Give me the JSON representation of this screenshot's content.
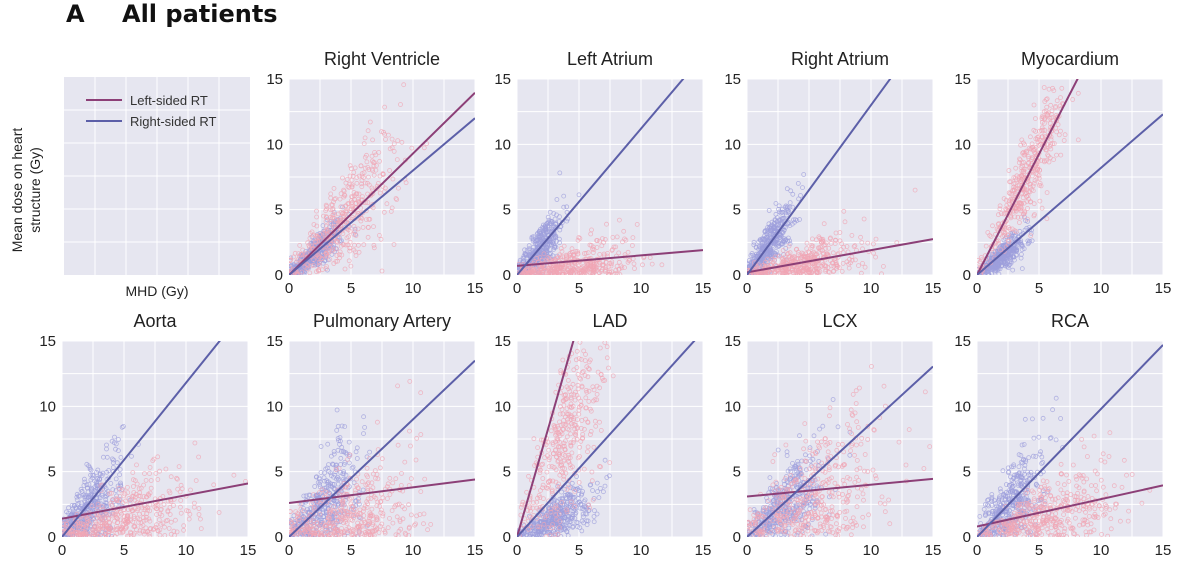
{
  "figure": {
    "letter": "A",
    "heading": "All patients",
    "ylabel_line1": "Mean dose on heart",
    "ylabel_line2": "structure (Gy)",
    "xlabel": "MHD (Gy)"
  },
  "colors": {
    "panel_bg": "#e6e6f0",
    "grid": "#ffffff",
    "left": "#8c3f77",
    "right": "#5c5fa8",
    "left_points": "#f0a6b4",
    "right_points": "#9d9fdc"
  },
  "legend": {
    "left_label": "Left-sided RT",
    "right_label": "Right-sided RT"
  },
  "chart_data": [
    {
      "type": "scatter",
      "title": "Right Ventricle",
      "xlim": [
        0,
        15
      ],
      "ylim": [
        0,
        15
      ],
      "xticks": [
        "0",
        "5",
        "10",
        "15"
      ],
      "yticks": [
        "0",
        "5",
        "10",
        "15"
      ],
      "series": [
        {
          "name": "Left-sided RT",
          "fit": {
            "intercept": 0.0,
            "slope": 0.93
          },
          "cloud": {
            "xmean": 4.5,
            "xsd": 2.2,
            "yslope": 0.95,
            "ysd": 1.5
          }
        },
        {
          "name": "Right-sided RT",
          "fit": {
            "intercept": 0.0,
            "slope": 0.8
          },
          "cloud": {
            "xmean": 2.0,
            "xsd": 1.2,
            "yslope": 0.8,
            "ysd": 0.8
          }
        }
      ]
    },
    {
      "type": "scatter",
      "title": "Left Atrium",
      "xlim": [
        0,
        15
      ],
      "ylim": [
        0,
        15
      ],
      "xticks": [
        "0",
        "5",
        "10",
        "15"
      ],
      "yticks": [
        "0",
        "5",
        "10",
        "15"
      ],
      "series": [
        {
          "name": "Left-sided RT",
          "fit": {
            "intercept": 0.7,
            "slope": 0.08
          },
          "cloud": {
            "xmean": 4.5,
            "xsd": 2.5,
            "yslope": 0.08,
            "ysd": 0.8
          }
        },
        {
          "name": "Right-sided RT",
          "fit": {
            "intercept": 0.0,
            "slope": 1.12
          },
          "cloud": {
            "xmean": 1.8,
            "xsd": 1.0,
            "yslope": 1.1,
            "ysd": 1.2
          }
        }
      ]
    },
    {
      "type": "scatter",
      "title": "Right Atrium",
      "xlim": [
        0,
        15
      ],
      "ylim": [
        0,
        15
      ],
      "xticks": [
        "0",
        "5",
        "10",
        "15"
      ],
      "yticks": [
        "0",
        "5",
        "10",
        "15"
      ],
      "series": [
        {
          "name": "Left-sided RT",
          "fit": {
            "intercept": 0.2,
            "slope": 0.17
          },
          "cloud": {
            "xmean": 4.5,
            "xsd": 2.5,
            "yslope": 0.18,
            "ysd": 0.7
          }
        },
        {
          "name": "Right-sided RT",
          "fit": {
            "intercept": 0.0,
            "slope": 1.3
          },
          "cloud": {
            "xmean": 1.7,
            "xsd": 1.0,
            "yslope": 1.3,
            "ysd": 1.3
          }
        }
      ]
    },
    {
      "type": "scatter",
      "title": "Myocardium",
      "xlim": [
        0,
        15
      ],
      "ylim": [
        0,
        15
      ],
      "xticks": [
        "0",
        "5",
        "10",
        "15"
      ],
      "yticks": [
        "0",
        "5",
        "10",
        "15"
      ],
      "series": [
        {
          "name": "Left-sided RT",
          "fit": {
            "intercept": 0.0,
            "slope": 1.85
          },
          "cloud": {
            "xmean": 4.0,
            "xsd": 1.6,
            "yslope": 1.85,
            "ysd": 1.3
          }
        },
        {
          "name": "Right-sided RT",
          "fit": {
            "intercept": 0.0,
            "slope": 0.82
          },
          "cloud": {
            "xmean": 2.0,
            "xsd": 1.0,
            "yslope": 0.7,
            "ysd": 0.6
          }
        }
      ]
    },
    {
      "type": "scatter",
      "title": "Aorta",
      "xlim": [
        0,
        15
      ],
      "ylim": [
        0,
        15
      ],
      "xticks": [
        "0",
        "5",
        "10",
        "15"
      ],
      "yticks": [
        "0",
        "5",
        "10",
        "15"
      ],
      "series": [
        {
          "name": "Left-sided RT",
          "fit": {
            "intercept": 1.4,
            "slope": 0.18
          },
          "cloud": {
            "xmean": 5.0,
            "xsd": 3.0,
            "yslope": 0.2,
            "ysd": 1.3
          }
        },
        {
          "name": "Right-sided RT",
          "fit": {
            "intercept": 0.0,
            "slope": 1.18
          },
          "cloud": {
            "xmean": 2.2,
            "xsd": 1.3,
            "yslope": 1.0,
            "ysd": 1.8
          }
        }
      ]
    },
    {
      "type": "scatter",
      "title": "Pulmonary Artery",
      "xlim": [
        0,
        15
      ],
      "ylim": [
        0,
        15
      ],
      "xticks": [
        "0",
        "5",
        "10",
        "15"
      ],
      "yticks": [
        "0",
        "5",
        "10",
        "15"
      ],
      "series": [
        {
          "name": "Left-sided RT",
          "fit": {
            "intercept": 2.6,
            "slope": 0.12
          },
          "cloud": {
            "xmean": 5.0,
            "xsd": 2.8,
            "yslope": 0.15,
            "ysd": 2.0
          }
        },
        {
          "name": "Right-sided RT",
          "fit": {
            "intercept": 0.0,
            "slope": 0.9
          },
          "cloud": {
            "xmean": 2.8,
            "xsd": 1.5,
            "yslope": 0.9,
            "ysd": 1.8
          }
        }
      ]
    },
    {
      "type": "scatter",
      "title": "LAD",
      "xlim": [
        0,
        15
      ],
      "ylim": [
        0,
        15
      ],
      "xticks": [
        "0",
        "5",
        "10",
        "15"
      ],
      "yticks": [
        "0",
        "5",
        "10",
        "15"
      ],
      "series": [
        {
          "name": "Left-sided RT",
          "fit": {
            "intercept": 0.0,
            "slope": 3.3
          },
          "cloud": {
            "xmean": 4.0,
            "xsd": 1.8,
            "yslope": 2.0,
            "ysd": 3.0
          }
        },
        {
          "name": "Right-sided RT",
          "fit": {
            "intercept": 0.0,
            "slope": 1.05
          },
          "cloud": {
            "xmean": 3.0,
            "xsd": 1.5,
            "yslope": 0.5,
            "ysd": 0.8
          }
        }
      ]
    },
    {
      "type": "scatter",
      "title": "LCX",
      "xlim": [
        0,
        15
      ],
      "ylim": [
        0,
        15
      ],
      "xticks": [
        "0",
        "5",
        "10",
        "15"
      ],
      "yticks": [
        "0",
        "5",
        "10",
        "15"
      ],
      "series": [
        {
          "name": "Left-sided RT",
          "fit": {
            "intercept": 3.1,
            "slope": 0.09
          },
          "cloud": {
            "xmean": 5.5,
            "xsd": 2.8,
            "yslope": 0.5,
            "ysd": 2.0
          }
        },
        {
          "name": "Right-sided RT",
          "fit": {
            "intercept": 0.0,
            "slope": 0.87
          },
          "cloud": {
            "xmean": 3.2,
            "xsd": 1.6,
            "yslope": 0.8,
            "ysd": 1.5
          }
        }
      ]
    },
    {
      "type": "scatter",
      "title": "RCA",
      "xlim": [
        0,
        15
      ],
      "ylim": [
        0,
        15
      ],
      "xticks": [
        "0",
        "5",
        "10",
        "15"
      ],
      "yticks": [
        "0",
        "5",
        "10",
        "15"
      ],
      "series": [
        {
          "name": "Left-sided RT",
          "fit": {
            "intercept": 0.8,
            "slope": 0.21
          },
          "cloud": {
            "xmean": 6.0,
            "xsd": 3.0,
            "yslope": 0.3,
            "ysd": 1.0
          }
        },
        {
          "name": "Right-sided RT",
          "fit": {
            "intercept": 0.0,
            "slope": 0.98
          },
          "cloud": {
            "xmean": 2.7,
            "xsd": 1.3,
            "yslope": 0.95,
            "ysd": 1.6
          }
        }
      ]
    }
  ]
}
